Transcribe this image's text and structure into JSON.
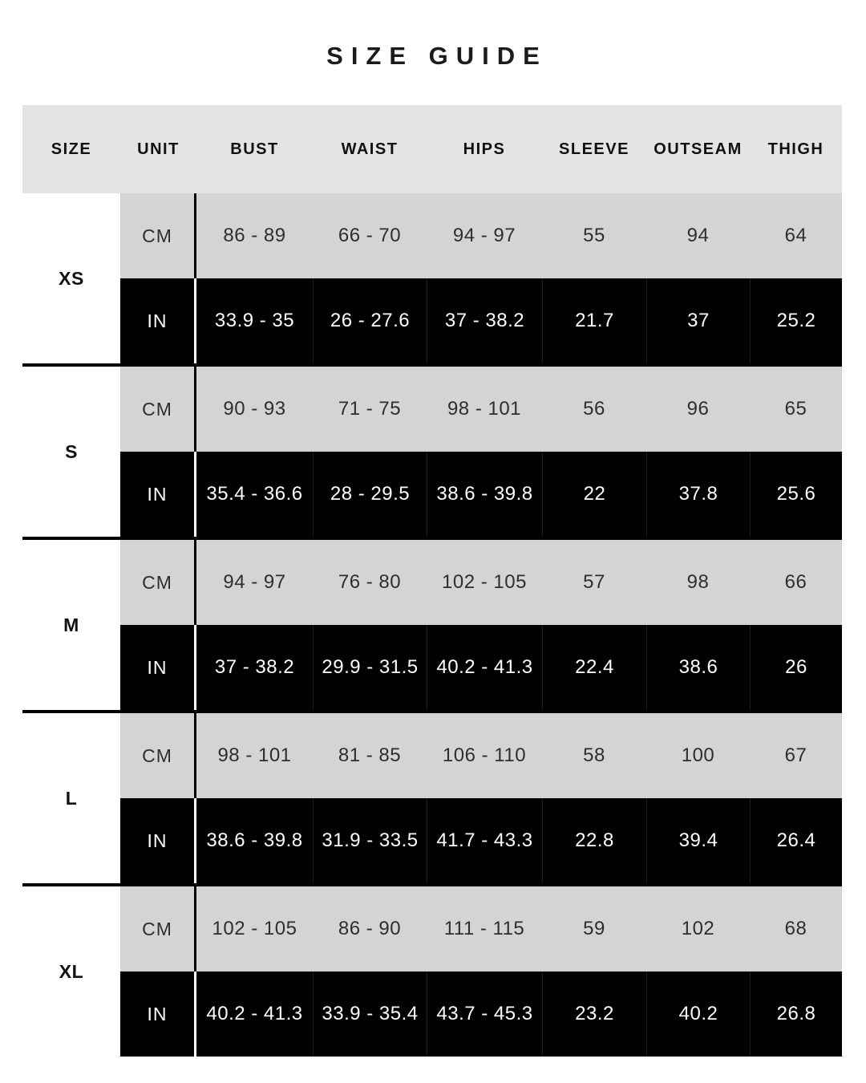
{
  "title": "SIZE GUIDE",
  "units": {
    "cm": "CM",
    "in": "IN"
  },
  "table": {
    "headers": [
      "SIZE",
      "UNIT",
      "BUST",
      "WAIST",
      "HIPS",
      "SLEEVE",
      "OUTSEAM",
      "THIGH"
    ],
    "rows": [
      {
        "size": "XS",
        "cm": [
          "86 - 89",
          "66 - 70",
          "94 - 97",
          "55",
          "94",
          "64"
        ],
        "in": [
          "33.9 - 35",
          "26 - 27.6",
          "37 - 38.2",
          "21.7",
          "37",
          "25.2"
        ]
      },
      {
        "size": "S",
        "cm": [
          "90 - 93",
          "71 - 75",
          "98 - 101",
          "56",
          "96",
          "65"
        ],
        "in": [
          "35.4 - 36.6",
          "28 - 29.5",
          "38.6 - 39.8",
          "22",
          "37.8",
          "25.6"
        ]
      },
      {
        "size": "M",
        "cm": [
          "94 - 97",
          "76 - 80",
          "102 - 105",
          "57",
          "98",
          "66"
        ],
        "in": [
          "37 - 38.2",
          "29.9 - 31.5",
          "40.2 - 41.3",
          "22.4",
          "38.6",
          "26"
        ]
      },
      {
        "size": "L",
        "cm": [
          "98 - 101",
          "81 - 85",
          "106 - 110",
          "58",
          "100",
          "67"
        ],
        "in": [
          "38.6 - 39.8",
          "31.9 - 33.5",
          "41.7 - 43.3",
          "22.8",
          "39.4",
          "26.4"
        ]
      },
      {
        "size": "XL",
        "cm": [
          "102 - 105",
          "86 - 90",
          "111 - 115",
          "59",
          "102",
          "68"
        ],
        "in": [
          "40.2 - 41.3",
          "33.9 - 35.4",
          "43.7 - 45.3",
          "23.2",
          "40.2",
          "26.8"
        ]
      }
    ]
  },
  "colors": {
    "page_bg": "#ffffff",
    "header_bg": "#e4e4e7",
    "cm_row_bg": "#d4d4d4",
    "in_row_bg": "#000000",
    "in_row_text": "#ffffff",
    "title_text": "#1b1b1b",
    "separator": "#000000"
  }
}
